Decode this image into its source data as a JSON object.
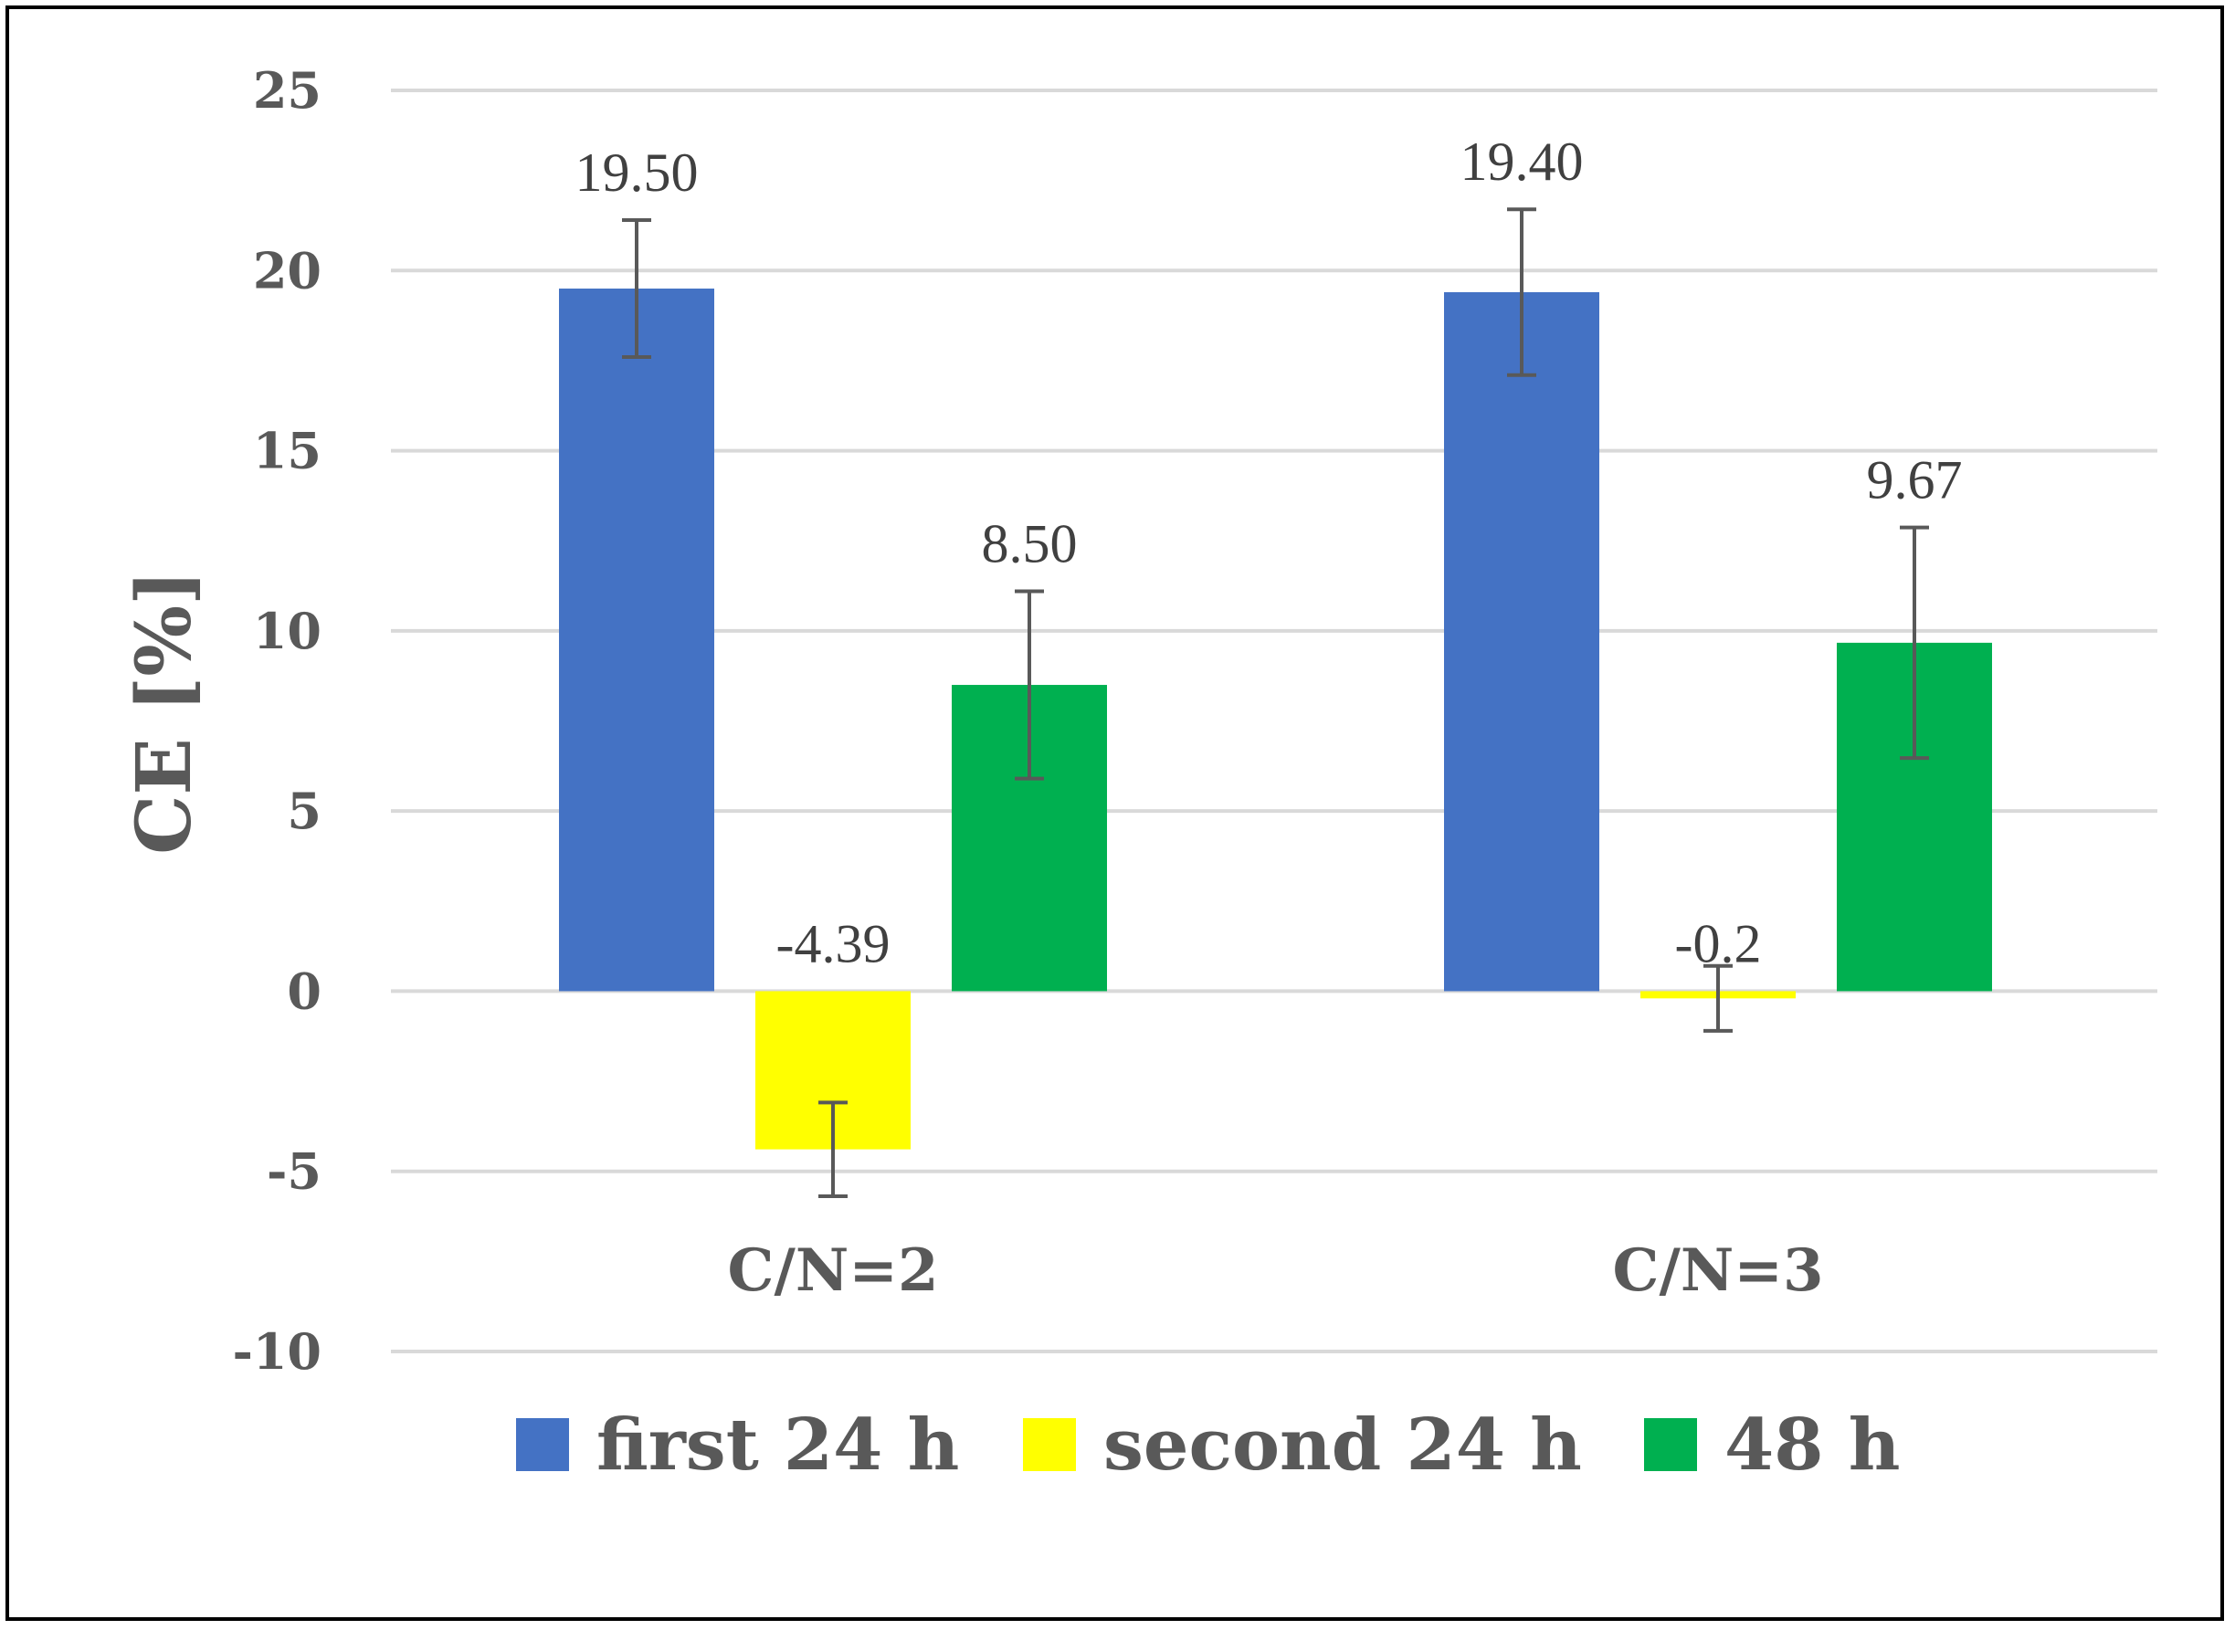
{
  "chart_data": {
    "type": "bar",
    "ylabel": "CE [%]",
    "ylim": [
      -10,
      25
    ],
    "yticks": [
      25,
      20,
      15,
      10,
      5,
      0,
      -5,
      -10
    ],
    "grid": true,
    "legend_position": "bottom",
    "categories": [
      "C/N=2",
      "C/N=3"
    ],
    "series": [
      {
        "name": "first 24 h",
        "color": "#4472C4",
        "values": [
          19.5,
          19.4
        ],
        "labels": [
          "19.50",
          "19.40"
        ],
        "errors": [
          1.9,
          2.3
        ]
      },
      {
        "name": "second 24 h",
        "color": "#FFFF00",
        "values": [
          -4.39,
          -0.2
        ],
        "labels": [
          "-4.39",
          "-0.2"
        ],
        "errors": [
          1.3,
          0.9
        ]
      },
      {
        "name": "48 h",
        "color": "#00B050",
        "values": [
          8.5,
          9.67
        ],
        "labels": [
          "8.50",
          "9.67"
        ],
        "errors": [
          2.6,
          3.2
        ]
      }
    ]
  }
}
